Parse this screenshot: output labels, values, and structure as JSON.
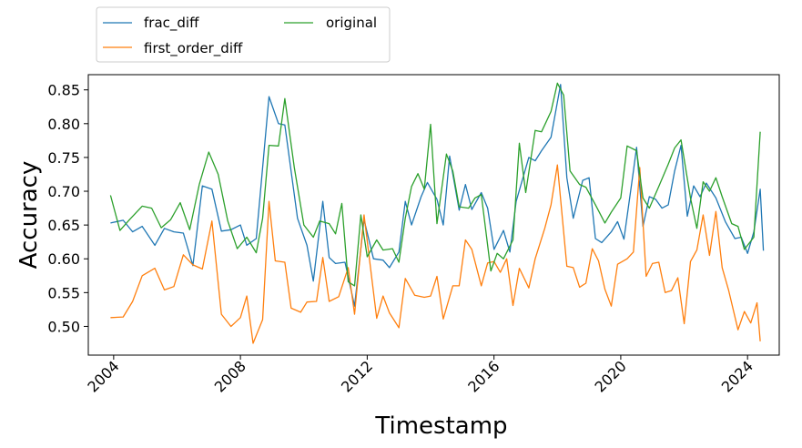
{
  "chart_data": {
    "type": "line",
    "title": "",
    "xlabel": "Timestamp",
    "ylabel": "Accuracy",
    "xlim": [
      2003.2,
      2025.0
    ],
    "ylim": [
      0.4575,
      0.8725
    ],
    "x_ticks": [
      2004,
      2008,
      2012,
      2016,
      2020,
      2024
    ],
    "x_tick_labels": [
      "2004",
      "2008",
      "2012",
      "2016",
      "2020",
      "2024"
    ],
    "y_ticks": [
      0.5,
      0.55,
      0.6,
      0.65,
      0.7,
      0.75,
      0.8,
      0.85
    ],
    "y_tick_labels": [
      "0.50",
      "0.55",
      "0.60",
      "0.65",
      "0.70",
      "0.75",
      "0.80",
      "0.85"
    ],
    "grid": false,
    "legend": {
      "placement": "above-left",
      "columns": 2
    },
    "series": [
      {
        "name": "frac_diff",
        "color": "#1f77b4",
        "points": [
          [
            2003.9,
            0.653
          ],
          [
            2004.3,
            0.657
          ],
          [
            2004.6,
            0.64
          ],
          [
            2004.9,
            0.648
          ],
          [
            2005.3,
            0.62
          ],
          [
            2005.6,
            0.645
          ],
          [
            2005.9,
            0.64
          ],
          [
            2006.2,
            0.638
          ],
          [
            2006.5,
            0.59
          ],
          [
            2006.8,
            0.708
          ],
          [
            2007.1,
            0.703
          ],
          [
            2007.4,
            0.641
          ],
          [
            2007.7,
            0.643
          ],
          [
            2008.0,
            0.65
          ],
          [
            2008.2,
            0.62
          ],
          [
            2008.5,
            0.63
          ],
          [
            2008.9,
            0.84
          ],
          [
            2009.2,
            0.8
          ],
          [
            2009.4,
            0.798
          ],
          [
            2009.8,
            0.66
          ],
          [
            2010.1,
            0.62
          ],
          [
            2010.3,
            0.567
          ],
          [
            2010.6,
            0.685
          ],
          [
            2010.8,
            0.602
          ],
          [
            2011.0,
            0.593
          ],
          [
            2011.3,
            0.595
          ],
          [
            2011.6,
            0.53
          ],
          [
            2011.9,
            0.658
          ],
          [
            2012.2,
            0.6
          ],
          [
            2012.5,
            0.598
          ],
          [
            2012.7,
            0.587
          ],
          [
            2013.0,
            0.61
          ],
          [
            2013.2,
            0.685
          ],
          [
            2013.4,
            0.65
          ],
          [
            2013.7,
            0.692
          ],
          [
            2013.9,
            0.713
          ],
          [
            2014.2,
            0.688
          ],
          [
            2014.4,
            0.65
          ],
          [
            2014.6,
            0.752
          ],
          [
            2014.9,
            0.672
          ],
          [
            2015.1,
            0.71
          ],
          [
            2015.3,
            0.673
          ],
          [
            2015.6,
            0.698
          ],
          [
            2015.8,
            0.675
          ],
          [
            2016.0,
            0.614
          ],
          [
            2016.3,
            0.642
          ],
          [
            2016.5,
            0.61
          ],
          [
            2016.7,
            0.685
          ],
          [
            2017.1,
            0.75
          ],
          [
            2017.3,
            0.745
          ],
          [
            2017.5,
            0.76
          ],
          [
            2017.8,
            0.78
          ],
          [
            2018.1,
            0.858
          ],
          [
            2018.3,
            0.72
          ],
          [
            2018.5,
            0.66
          ],
          [
            2018.8,
            0.716
          ],
          [
            2019.0,
            0.72
          ],
          [
            2019.2,
            0.63
          ],
          [
            2019.4,
            0.624
          ],
          [
            2019.7,
            0.64
          ],
          [
            2019.9,
            0.655
          ],
          [
            2020.1,
            0.629
          ],
          [
            2020.4,
            0.73
          ],
          [
            2020.5,
            0.765
          ],
          [
            2020.7,
            0.648
          ],
          [
            2020.9,
            0.692
          ],
          [
            2021.1,
            0.688
          ],
          [
            2021.3,
            0.675
          ],
          [
            2021.5,
            0.68
          ],
          [
            2021.7,
            0.73
          ],
          [
            2021.9,
            0.768
          ],
          [
            2022.1,
            0.663
          ],
          [
            2022.3,
            0.708
          ],
          [
            2022.5,
            0.692
          ],
          [
            2022.7,
            0.712
          ],
          [
            2023.0,
            0.69
          ],
          [
            2023.3,
            0.655
          ],
          [
            2023.6,
            0.63
          ],
          [
            2023.8,
            0.632
          ],
          [
            2024.0,
            0.608
          ],
          [
            2024.2,
            0.64
          ],
          [
            2024.4,
            0.703
          ],
          [
            2024.5,
            0.612
          ]
        ]
      },
      {
        "name": "first_order_diff",
        "color": "#ff7f0e",
        "points": [
          [
            2003.9,
            0.513
          ],
          [
            2004.3,
            0.514
          ],
          [
            2004.6,
            0.537
          ],
          [
            2004.9,
            0.575
          ],
          [
            2005.3,
            0.586
          ],
          [
            2005.6,
            0.554
          ],
          [
            2005.9,
            0.559
          ],
          [
            2006.2,
            0.606
          ],
          [
            2006.5,
            0.591
          ],
          [
            2006.8,
            0.585
          ],
          [
            2007.1,
            0.656
          ],
          [
            2007.4,
            0.518
          ],
          [
            2007.7,
            0.5
          ],
          [
            2008.0,
            0.513
          ],
          [
            2008.2,
            0.545
          ],
          [
            2008.4,
            0.475
          ],
          [
            2008.7,
            0.51
          ],
          [
            2008.9,
            0.685
          ],
          [
            2009.1,
            0.597
          ],
          [
            2009.4,
            0.595
          ],
          [
            2009.6,
            0.527
          ],
          [
            2009.9,
            0.521
          ],
          [
            2010.1,
            0.536
          ],
          [
            2010.4,
            0.537
          ],
          [
            2010.6,
            0.602
          ],
          [
            2010.8,
            0.537
          ],
          [
            2011.1,
            0.544
          ],
          [
            2011.4,
            0.587
          ],
          [
            2011.6,
            0.518
          ],
          [
            2011.9,
            0.665
          ],
          [
            2012.3,
            0.512
          ],
          [
            2012.5,
            0.545
          ],
          [
            2012.7,
            0.52
          ],
          [
            2013.0,
            0.498
          ],
          [
            2013.2,
            0.571
          ],
          [
            2013.5,
            0.546
          ],
          [
            2013.8,
            0.543
          ],
          [
            2014.0,
            0.545
          ],
          [
            2014.2,
            0.574
          ],
          [
            2014.4,
            0.511
          ],
          [
            2014.7,
            0.56
          ],
          [
            2014.9,
            0.56
          ],
          [
            2015.1,
            0.628
          ],
          [
            2015.3,
            0.614
          ],
          [
            2015.6,
            0.56
          ],
          [
            2015.8,
            0.594
          ],
          [
            2016.0,
            0.596
          ],
          [
            2016.2,
            0.58
          ],
          [
            2016.4,
            0.6
          ],
          [
            2016.6,
            0.531
          ],
          [
            2016.8,
            0.586
          ],
          [
            2017.1,
            0.557
          ],
          [
            2017.3,
            0.6
          ],
          [
            2017.6,
            0.645
          ],
          [
            2017.8,
            0.68
          ],
          [
            2018.0,
            0.739
          ],
          [
            2018.3,
            0.589
          ],
          [
            2018.5,
            0.587
          ],
          [
            2018.7,
            0.558
          ],
          [
            2018.9,
            0.564
          ],
          [
            2019.1,
            0.615
          ],
          [
            2019.3,
            0.597
          ],
          [
            2019.5,
            0.555
          ],
          [
            2019.7,
            0.53
          ],
          [
            2019.9,
            0.592
          ],
          [
            2020.2,
            0.6
          ],
          [
            2020.4,
            0.61
          ],
          [
            2020.6,
            0.735
          ],
          [
            2020.8,
            0.574
          ],
          [
            2021.0,
            0.593
          ],
          [
            2021.2,
            0.595
          ],
          [
            2021.4,
            0.55
          ],
          [
            2021.6,
            0.553
          ],
          [
            2021.8,
            0.572
          ],
          [
            2022.0,
            0.504
          ],
          [
            2022.2,
            0.596
          ],
          [
            2022.4,
            0.613
          ],
          [
            2022.6,
            0.665
          ],
          [
            2022.8,
            0.605
          ],
          [
            2023.0,
            0.67
          ],
          [
            2023.2,
            0.587
          ],
          [
            2023.4,
            0.554
          ],
          [
            2023.7,
            0.495
          ],
          [
            2023.9,
            0.522
          ],
          [
            2024.1,
            0.505
          ],
          [
            2024.3,
            0.535
          ],
          [
            2024.4,
            0.478
          ]
        ]
      },
      {
        "name": "original",
        "color": "#2ca02c",
        "points": [
          [
            2003.9,
            0.694
          ],
          [
            2004.2,
            0.642
          ],
          [
            2004.5,
            0.658
          ],
          [
            2004.9,
            0.678
          ],
          [
            2005.2,
            0.675
          ],
          [
            2005.5,
            0.646
          ],
          [
            2005.8,
            0.658
          ],
          [
            2006.1,
            0.683
          ],
          [
            2006.4,
            0.643
          ],
          [
            2006.7,
            0.71
          ],
          [
            2007.0,
            0.758
          ],
          [
            2007.3,
            0.725
          ],
          [
            2007.6,
            0.656
          ],
          [
            2007.9,
            0.615
          ],
          [
            2008.2,
            0.632
          ],
          [
            2008.5,
            0.609
          ],
          [
            2008.7,
            0.66
          ],
          [
            2008.9,
            0.768
          ],
          [
            2009.2,
            0.767
          ],
          [
            2009.4,
            0.837
          ],
          [
            2009.7,
            0.735
          ],
          [
            2010.0,
            0.65
          ],
          [
            2010.3,
            0.632
          ],
          [
            2010.5,
            0.656
          ],
          [
            2010.8,
            0.652
          ],
          [
            2011.0,
            0.637
          ],
          [
            2011.2,
            0.682
          ],
          [
            2011.4,
            0.566
          ],
          [
            2011.6,
            0.56
          ],
          [
            2011.8,
            0.665
          ],
          [
            2012.0,
            0.603
          ],
          [
            2012.3,
            0.628
          ],
          [
            2012.5,
            0.613
          ],
          [
            2012.8,
            0.615
          ],
          [
            2013.0,
            0.595
          ],
          [
            2013.2,
            0.66
          ],
          [
            2013.4,
            0.707
          ],
          [
            2013.6,
            0.726
          ],
          [
            2013.8,
            0.703
          ],
          [
            2014.0,
            0.799
          ],
          [
            2014.2,
            0.652
          ],
          [
            2014.5,
            0.755
          ],
          [
            2014.7,
            0.73
          ],
          [
            2014.9,
            0.677
          ],
          [
            2015.2,
            0.675
          ],
          [
            2015.4,
            0.69
          ],
          [
            2015.6,
            0.695
          ],
          [
            2015.9,
            0.582
          ],
          [
            2016.1,
            0.608
          ],
          [
            2016.3,
            0.6
          ],
          [
            2016.6,
            0.628
          ],
          [
            2016.8,
            0.771
          ],
          [
            2017.0,
            0.698
          ],
          [
            2017.3,
            0.79
          ],
          [
            2017.5,
            0.788
          ],
          [
            2017.8,
            0.818
          ],
          [
            2018.0,
            0.86
          ],
          [
            2018.2,
            0.842
          ],
          [
            2018.4,
            0.73
          ],
          [
            2018.7,
            0.71
          ],
          [
            2018.9,
            0.706
          ],
          [
            2019.2,
            0.68
          ],
          [
            2019.5,
            0.653
          ],
          [
            2019.7,
            0.669
          ],
          [
            2020.0,
            0.69
          ],
          [
            2020.2,
            0.767
          ],
          [
            2020.5,
            0.76
          ],
          [
            2020.7,
            0.69
          ],
          [
            2020.9,
            0.675
          ],
          [
            2021.2,
            0.707
          ],
          [
            2021.5,
            0.74
          ],
          [
            2021.7,
            0.764
          ],
          [
            2021.9,
            0.776
          ],
          [
            2022.2,
            0.69
          ],
          [
            2022.4,
            0.645
          ],
          [
            2022.6,
            0.714
          ],
          [
            2022.8,
            0.7
          ],
          [
            2023.0,
            0.72
          ],
          [
            2023.2,
            0.692
          ],
          [
            2023.5,
            0.652
          ],
          [
            2023.7,
            0.648
          ],
          [
            2023.9,
            0.614
          ],
          [
            2024.2,
            0.632
          ],
          [
            2024.4,
            0.788
          ]
        ]
      }
    ]
  }
}
